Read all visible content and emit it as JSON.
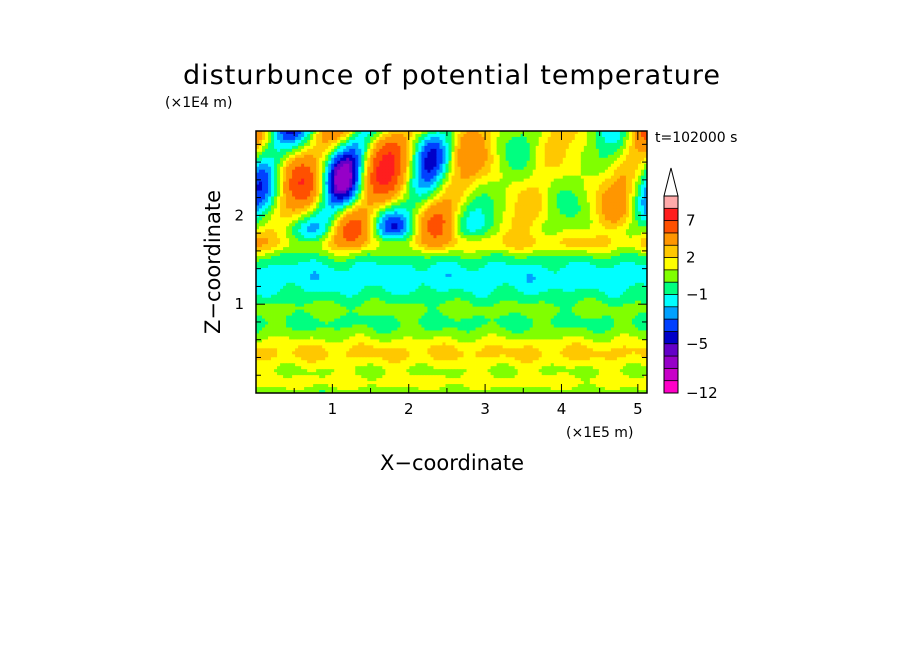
{
  "chart_data": {
    "type": "heatmap",
    "title": "disturbunce of potential temperature",
    "xlabel": "X−coordinate",
    "ylabel": "Z−coordinate",
    "x_unit": "(×1E5 m)",
    "y_unit": "(×1E4 m)",
    "time_label": "t=102000 s",
    "xlim": [
      0,
      5.12
    ],
    "ylim": [
      0,
      2.95
    ],
    "x_ticks": [
      "1",
      "2",
      "3",
      "4",
      "5"
    ],
    "x_tick_values": [
      1,
      2,
      3,
      4,
      5
    ],
    "y_ticks": [
      "1",
      "2"
    ],
    "y_tick_values": [
      1,
      2
    ],
    "colorbar": {
      "labels": [
        "−12",
        "−5",
        "−1",
        "2",
        "7"
      ],
      "label_values": [
        -12,
        -5,
        -1,
        2,
        7
      ],
      "levels": [
        -12,
        -10,
        -8,
        -6,
        -5,
        -4,
        -3,
        -2,
        -1,
        0,
        1,
        2,
        3,
        5,
        7,
        9,
        11
      ],
      "colors": [
        "#ff00c8",
        "#c800c8",
        "#9600c8",
        "#6400c8",
        "#0000c8",
        "#0040ff",
        "#00a0ff",
        "#00ffff",
        "#00ff80",
        "#80ff00",
        "#ffff00",
        "#ffc800",
        "#ff9600",
        "#ff5000",
        "#ff1e1e",
        "#ffaaaa"
      ],
      "extend": "max"
    },
    "field_summary": {
      "bands": [
        {
          "z": 0.1,
          "level": "green/yellow"
        },
        {
          "z": 0.45,
          "level": "yellow/orange"
        },
        {
          "z": 0.8,
          "level": "green"
        },
        {
          "z": 1.1,
          "level": "cyan"
        },
        {
          "z": 1.45,
          "level": "cyan"
        },
        {
          "z": 1.7,
          "level": "yellow"
        },
        {
          "z": 2.0,
          "level": "mixed wave pattern"
        },
        {
          "z": 2.6,
          "level": "orange/blue waves"
        }
      ]
    }
  }
}
